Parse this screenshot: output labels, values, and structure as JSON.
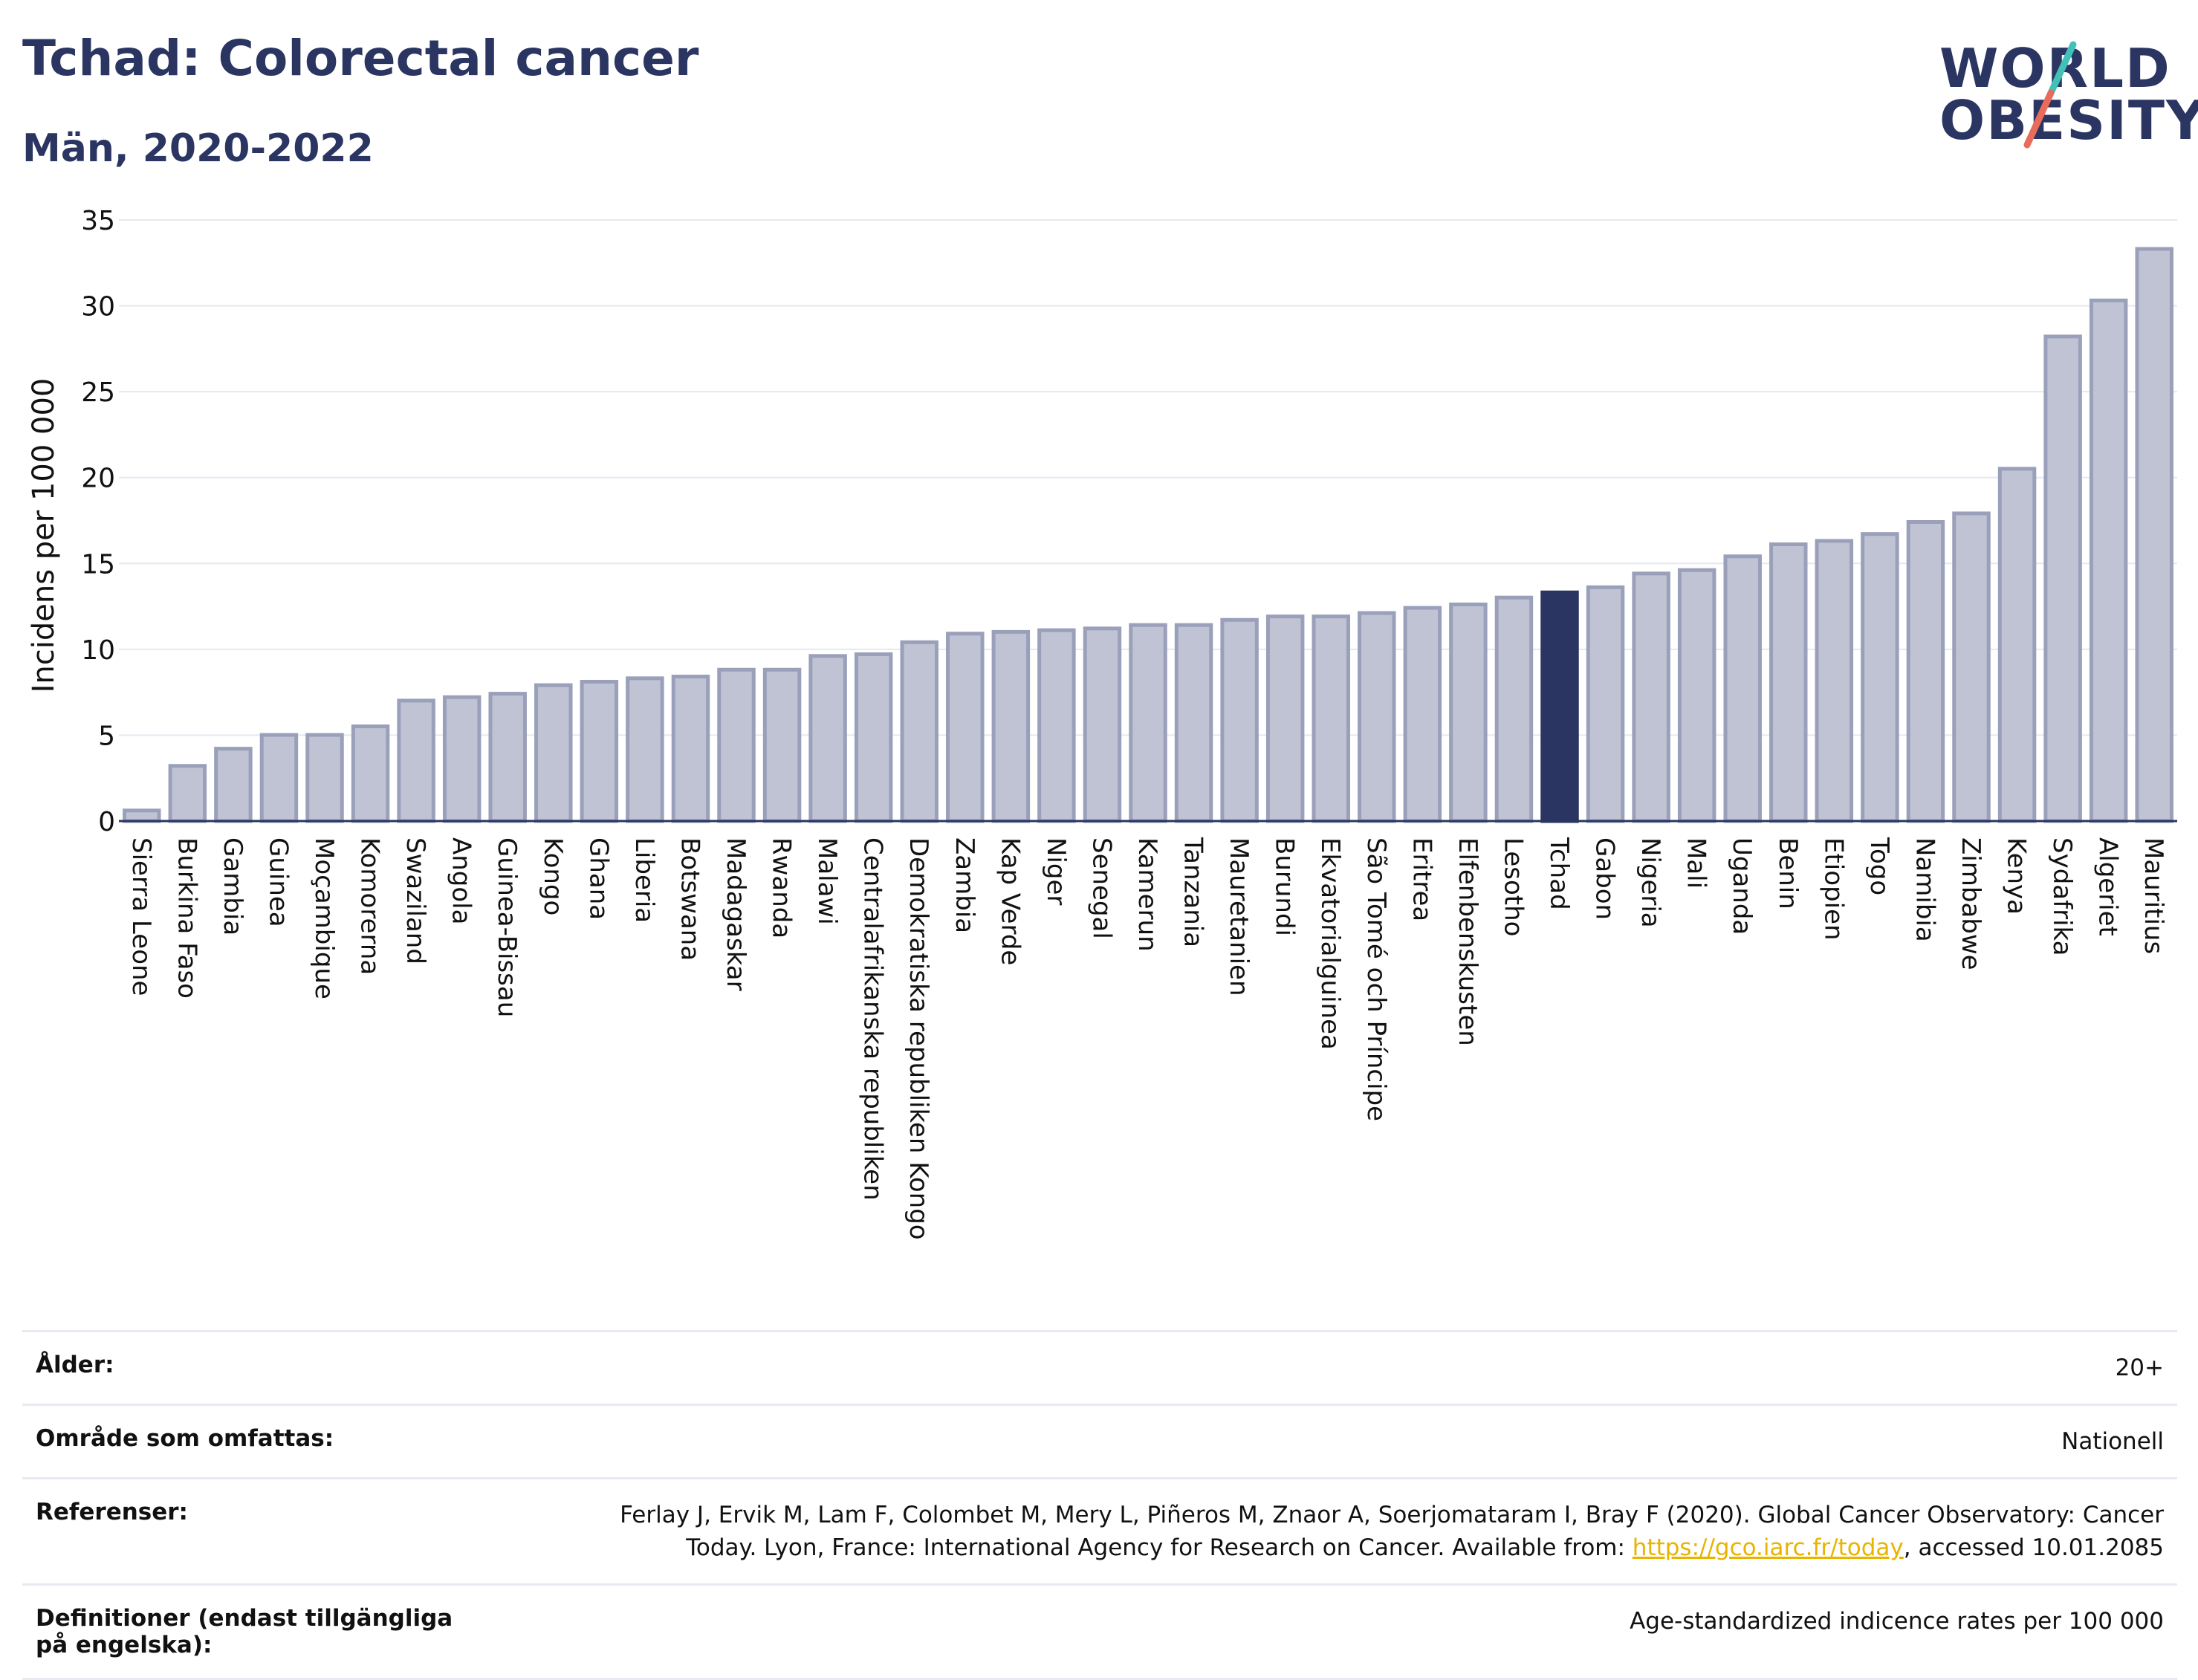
{
  "header": {
    "title": "Tchad: Colorectal cancer",
    "subtitle": "Män, 2020-2022"
  },
  "logo": {
    "line1": "WORLD",
    "line2": "OBESITY",
    "slash_colors": [
      "#41c1b8",
      "#e96b5c"
    ]
  },
  "colors": {
    "bar_default": "#bfc3d3",
    "bar_border": "#9aa0ba",
    "bar_highlight": "#2a3562",
    "link": "#e8b400"
  },
  "chart_data": {
    "type": "bar",
    "title": "",
    "xlabel": "",
    "ylabel": "Incidens per 100 000",
    "ylim": [
      0,
      35
    ],
    "yticks": [
      0,
      5,
      10,
      15,
      20,
      25,
      30,
      35
    ],
    "grid": true,
    "highlight": "Tchad",
    "categories": [
      "Sierra Leone",
      "Burkina Faso",
      "Gambia",
      "Guinea",
      "Moçambique",
      "Komorerna",
      "Swaziland",
      "Angola",
      "Guinea-Bissau",
      "Kongo",
      "Ghana",
      "Liberia",
      "Botswana",
      "Madagaskar",
      "Rwanda",
      "Malawi",
      "Centralafrikanska republiken",
      "Demokratiska republiken Kongo",
      "Zambia",
      "Kap Verde",
      "Niger",
      "Senegal",
      "Kamerun",
      "Tanzania",
      "Mauretanien",
      "Burundi",
      "Ekvatorialguinea",
      "São Tomé och Príncipe",
      "Eritrea",
      "Elfenbenskusten",
      "Lesotho",
      "Tchad",
      "Gabon",
      "Nigeria",
      "Mali",
      "Uganda",
      "Benin",
      "Etiopien",
      "Togo",
      "Namibia",
      "Zimbabwe",
      "Kenya",
      "Sydafrika",
      "Algeriet",
      "Mauritius"
    ],
    "values": [
      0.7,
      3.3,
      4.3,
      5.1,
      5.1,
      5.6,
      7.1,
      7.3,
      7.5,
      8.0,
      8.2,
      8.4,
      8.5,
      8.9,
      8.9,
      9.7,
      9.8,
      10.5,
      11.0,
      11.1,
      11.2,
      11.3,
      11.5,
      11.5,
      11.8,
      12.0,
      12.0,
      12.2,
      12.5,
      12.7,
      13.1,
      13.4,
      13.7,
      14.5,
      14.7,
      15.5,
      16.2,
      16.4,
      16.8,
      17.5,
      18.0,
      20.6,
      28.3,
      30.4,
      33.4
    ]
  },
  "metadata": [
    {
      "key": "Ålder:",
      "value": "20+"
    },
    {
      "key": "Område som omfattas:",
      "value": "Nationell"
    },
    {
      "key": "Referenser:",
      "value_line1": "Ferlay J, Ervik M, Lam F, Colombet M, Mery L, Piñeros M, Znaor A, Soerjomataram I, Bray F (2020). Global Cancer Observatory: Cancer",
      "value_pre": "Today. Lyon, France: International Agency for Research on Cancer. Available from: ",
      "link": "https://gco.iarc.fr/today",
      "value_post": ", accessed 10.01.2085"
    },
    {
      "key": "Definitioner (endast tillgängliga på engelska):",
      "value": "Age-standardized indicence rates per 100 000"
    }
  ]
}
